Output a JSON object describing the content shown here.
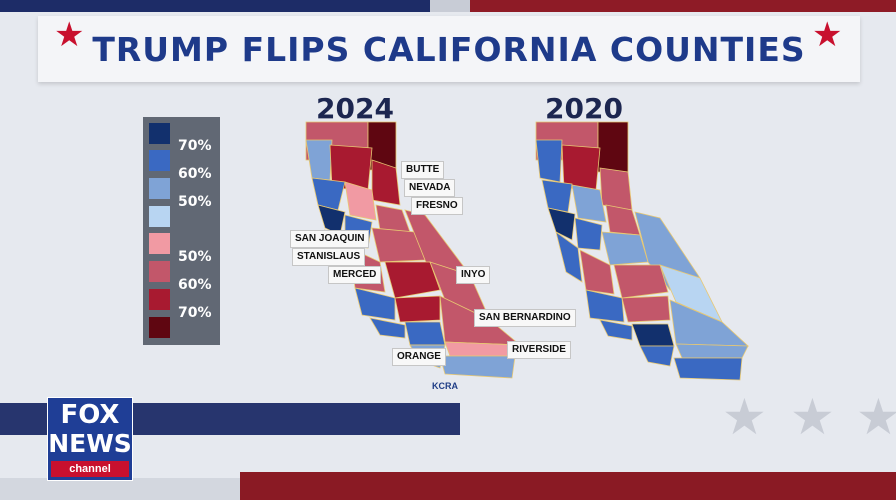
{
  "title": {
    "text": "TRUMP FLIPS CALIFORNIA COUNTIES",
    "star_left": "★",
    "star_right": "★"
  },
  "legend": {
    "labels": [
      "70%",
      "60%",
      "50%",
      "50%",
      "60%",
      "70%"
    ],
    "colors": [
      "#12306d",
      "#3a69c2",
      "#7fa3d6",
      "#b8d5f2",
      "#f19aa3",
      "#c2576a",
      "#a81a30",
      "#5f0611"
    ]
  },
  "maps": {
    "left_year": "2024",
    "right_year": "2020"
  },
  "counties": {
    "butte": "BUTTE",
    "nevada": "NEVADA",
    "fresno": "FRESNO",
    "san_joaquin": "SAN JOAQUIN",
    "stanislaus": "STANISLAUS",
    "merced": "MERCED",
    "inyo": "INYO",
    "san_bernardino": "SAN BERNARDINO",
    "riverside": "RIVERSIDE",
    "orange": "ORANGE"
  },
  "source": "KCRA",
  "logo": {
    "line1": "FOX",
    "line2": "NEWS",
    "line3": "channel"
  },
  "decoration": {
    "star": "★"
  }
}
